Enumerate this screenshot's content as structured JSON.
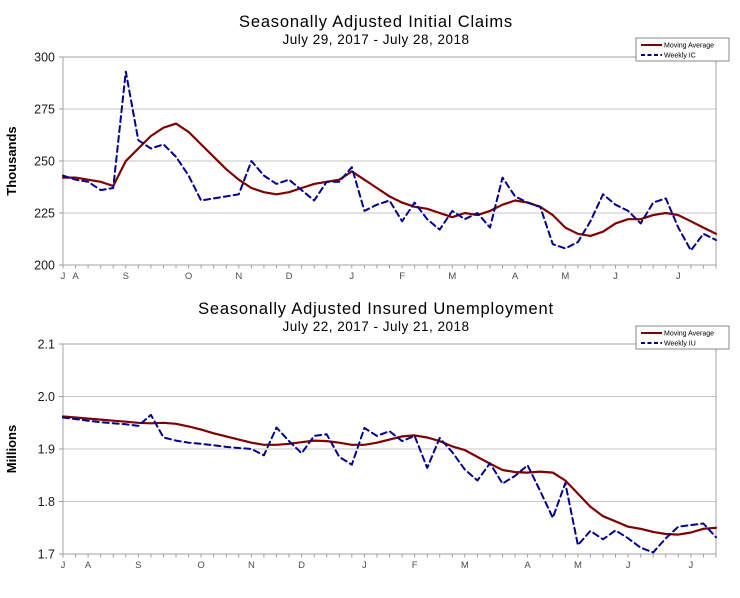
{
  "page": {
    "background": "#ffffff"
  },
  "chart_data": [
    {
      "type": "line",
      "title": "Seasonally Adjusted Initial Claims",
      "subtitle": "July 29, 2017 - July 28, 2018",
      "ylabel": "Thousands",
      "ylim": [
        200,
        300
      ],
      "yticks": [
        200,
        225,
        250,
        275,
        300
      ],
      "ytick_labels": [
        "200",
        "225",
        "250",
        "275",
        "300"
      ],
      "x_unit": "week",
      "n_points": 53,
      "grid": true,
      "legend_position": "top-right",
      "month_labels": [
        {
          "label": "J",
          "week": 0
        },
        {
          "label": "A",
          "week": 1
        },
        {
          "label": "S",
          "week": 5
        },
        {
          "label": "O",
          "week": 10
        },
        {
          "label": "N",
          "week": 14
        },
        {
          "label": "D",
          "week": 18
        },
        {
          "label": "J",
          "week": 23
        },
        {
          "label": "F",
          "week": 27
        },
        {
          "label": "M",
          "week": 31
        },
        {
          "label": "A",
          "week": 36
        },
        {
          "label": "M",
          "week": 40
        },
        {
          "label": "J",
          "week": 44
        },
        {
          "label": "J",
          "week": 49
        }
      ],
      "series": [
        {
          "name": "Moving Average",
          "color": "#7f0000",
          "line_style": "solid",
          "values": [
            242,
            242,
            241,
            240,
            238,
            250,
            256,
            262,
            266,
            268,
            264,
            258,
            252,
            246,
            241,
            237,
            235,
            234,
            235,
            237,
            239,
            240,
            241,
            245,
            241,
            237,
            233,
            230,
            228,
            227,
            225,
            223,
            225,
            224,
            226,
            229,
            231,
            230,
            228,
            224,
            218,
            215,
            214,
            216,
            220,
            222,
            222,
            224,
            225,
            224,
            221,
            218,
            215
          ]
        },
        {
          "name": "Weekly IC",
          "color": "#00008B",
          "line_style": "dashed",
          "values": [
            243,
            241,
            240,
            236,
            237,
            293,
            260,
            256,
            258,
            252,
            243,
            231,
            232,
            233,
            234,
            250,
            243,
            239,
            241,
            236,
            231,
            240,
            240,
            247,
            226,
            229,
            231,
            221,
            230,
            222,
            217,
            226,
            222,
            225,
            218,
            242,
            233,
            230,
            228,
            210,
            208,
            211,
            221,
            234,
            229,
            226,
            220,
            230,
            232,
            218,
            207,
            215,
            212
          ]
        }
      ]
    },
    {
      "type": "line",
      "title": "Seasonally Adjusted Insured Unemployment",
      "subtitle": "July 22, 2017 - July 21, 2018",
      "ylabel": "Millions",
      "ylim": [
        1.7,
        2.1
      ],
      "yticks": [
        1.7,
        1.8,
        1.9,
        2.0,
        2.1
      ],
      "ytick_labels": [
        "1.7",
        "1.8",
        "1.9",
        "2.0",
        "2.1"
      ],
      "x_unit": "week",
      "n_points": 53,
      "grid": true,
      "legend_position": "top-right",
      "month_labels": [
        {
          "label": "J",
          "week": 0
        },
        {
          "label": "A",
          "week": 2
        },
        {
          "label": "S",
          "week": 6
        },
        {
          "label": "O",
          "week": 11
        },
        {
          "label": "N",
          "week": 15
        },
        {
          "label": "D",
          "week": 19
        },
        {
          "label": "J",
          "week": 24
        },
        {
          "label": "F",
          "week": 28
        },
        {
          "label": "M",
          "week": 32
        },
        {
          "label": "A",
          "week": 37
        },
        {
          "label": "M",
          "week": 41
        },
        {
          "label": "J",
          "week": 45
        },
        {
          "label": "J",
          "week": 50
        }
      ],
      "series": [
        {
          "name": "Moving Average",
          "color": "#7f0000",
          "line_style": "solid",
          "values": [
            1.962,
            1.96,
            1.958,
            1.956,
            1.954,
            1.952,
            1.95,
            1.949,
            1.95,
            1.948,
            1.943,
            1.937,
            1.93,
            1.924,
            1.918,
            1.912,
            1.908,
            1.908,
            1.91,
            1.913,
            1.916,
            1.915,
            1.912,
            1.908,
            1.908,
            1.912,
            1.918,
            1.924,
            1.926,
            1.922,
            1.915,
            1.905,
            1.898,
            1.885,
            1.872,
            1.86,
            1.856,
            1.855,
            1.857,
            1.855,
            1.84,
            1.815,
            1.79,
            1.772,
            1.762,
            1.752,
            1.748,
            1.742,
            1.738,
            1.737,
            1.741,
            1.748,
            1.75
          ]
        },
        {
          "name": "Weekly IU",
          "color": "#00008B",
          "line_style": "dashed",
          "values": [
            1.96,
            1.957,
            1.954,
            1.951,
            1.949,
            1.947,
            1.944,
            1.965,
            1.922,
            1.916,
            1.912,
            1.91,
            1.907,
            1.904,
            1.902,
            1.9,
            1.888,
            1.941,
            1.915,
            1.892,
            1.925,
            1.928,
            1.885,
            1.87,
            1.94,
            1.925,
            1.934,
            1.915,
            1.925,
            1.864,
            1.921,
            1.894,
            1.861,
            1.84,
            1.873,
            1.834,
            1.849,
            1.869,
            1.82,
            1.769,
            1.835,
            1.717,
            1.744,
            1.728,
            1.745,
            1.73,
            1.712,
            1.703,
            1.73,
            1.752,
            1.755,
            1.758,
            1.732
          ]
        }
      ]
    }
  ]
}
